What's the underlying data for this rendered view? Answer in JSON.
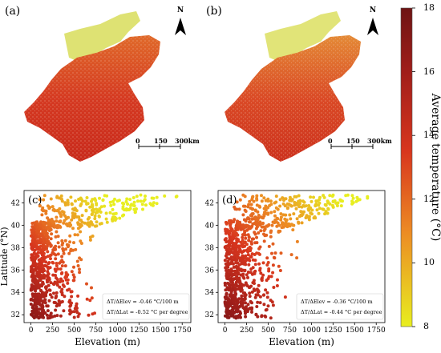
{
  "panels": {
    "a": {
      "label": "(a)"
    },
    "b": {
      "label": "(b)"
    },
    "c": {
      "label": "(c)",
      "ylabel": "Latitude (°N)",
      "xlabel": "Elevation (m)",
      "annotation1": "ΔT/ΔElev = -0.46 °C/100 m",
      "annotation2": "ΔT/ΔLat = -0.52 °C per degree"
    },
    "d": {
      "label": "(d)",
      "xlabel": "Elevation (m)",
      "annotation1": "ΔT/ΔElev = -0.36 °C/100 m",
      "annotation2": "ΔT/ΔLat = -0.44 °C per degree"
    }
  },
  "north_arrow": {
    "label": "N"
  },
  "scalebar": {
    "labels": [
      "0",
      "150",
      "300km"
    ]
  },
  "colorbar": {
    "title": "Average temperature (°C)",
    "ticks": [
      "18",
      "16",
      "14",
      "12",
      "10",
      "8"
    ],
    "colors": {
      "low": "#e8ee20",
      "mid": "#e8431c",
      "high": "#6e1414"
    }
  },
  "chart_data": [
    {
      "type": "scatter",
      "panel": "c",
      "xlabel": "Elevation (m)",
      "ylabel": "Latitude (°N)",
      "xlim": [
        -80,
        1850
      ],
      "ylim": [
        31.3,
        43.1
      ],
      "xticks": [
        "0",
        "250",
        "500",
        "750",
        "1000",
        "1250",
        "1500",
        "1750"
      ],
      "yticks": [
        "32",
        "34",
        "36",
        "38",
        "40",
        "42"
      ],
      "color_scale": [
        8,
        18
      ],
      "elev_lapse_rate": -0.46,
      "lat_gradient": -0.52
    },
    {
      "type": "scatter",
      "panel": "d",
      "xlabel": "Elevation (m)",
      "ylabel": "Latitude (°N)",
      "xlim": [
        -80,
        1850
      ],
      "ylim": [
        31.3,
        43.1
      ],
      "xticks": [
        "0",
        "250",
        "500",
        "750",
        "1000",
        "1250",
        "1500",
        "1750"
      ],
      "yticks": [
        "32",
        "34",
        "36",
        "38",
        "40",
        "42"
      ],
      "color_scale": [
        8,
        18
      ],
      "elev_lapse_rate": -0.36,
      "lat_gradient": -0.44
    }
  ]
}
